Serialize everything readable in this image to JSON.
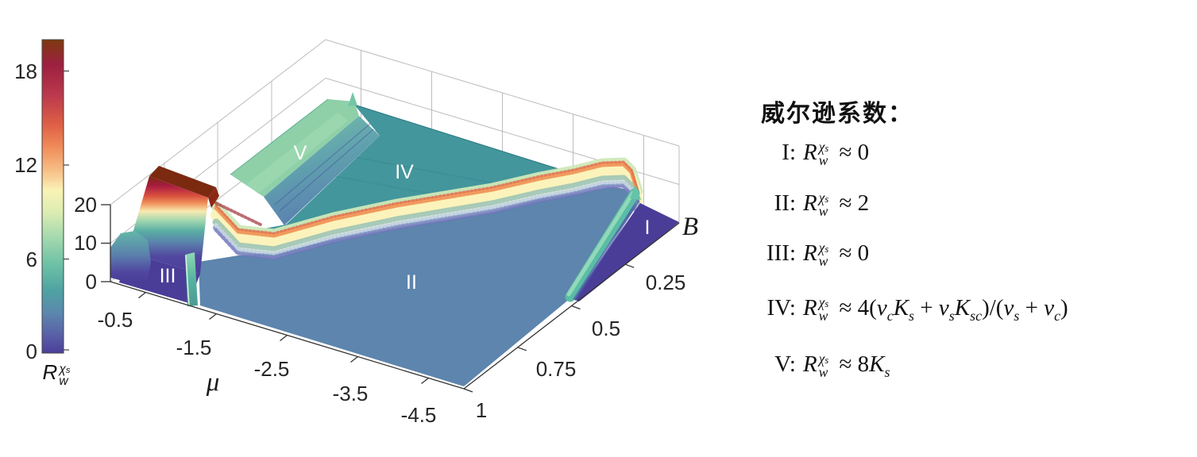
{
  "colorbar": {
    "ticks": [
      "0",
      "6",
      "12",
      "18"
    ],
    "range": [
      0,
      20
    ],
    "label_tokens": [
      {
        "R": true
      }
    ]
  },
  "axes": {
    "z": {
      "ticks": [
        "0",
        "10",
        "20"
      ]
    },
    "mu": {
      "label": "μ",
      "ticks": [
        "-0.5",
        "-1.5",
        "-2.5",
        "-3.5",
        "-4.5"
      ]
    },
    "b": {
      "label": "B",
      "ticks": [
        "0.25",
        "0.5",
        "0.75",
        "1"
      ]
    }
  },
  "plot": {
    "region_labels": {
      "I": "I",
      "II": "II",
      "III": "III",
      "IV": "IV",
      "V": "V"
    }
  },
  "legend": {
    "title": "威尔逊系数：",
    "R": {
      "base": "R",
      "sup": "χ",
      "sup_sub": "s",
      "sub": "w"
    },
    "lines": [
      {
        "num": "I:",
        "tokens": [
          {
            "R": true
          },
          {
            "t": " ≈ 0"
          }
        ]
      },
      {
        "num": "II:",
        "tokens": [
          {
            "R": true
          },
          {
            "t": " ≈ 2"
          }
        ]
      },
      {
        "num": "III:",
        "tokens": [
          {
            "R": true
          },
          {
            "t": " ≈ 0"
          }
        ]
      },
      {
        "num": "IV:",
        "tokens": [
          {
            "R": true
          },
          {
            "t": " ≈ 4("
          },
          {
            "i": "v",
            "s": "c"
          },
          {
            "i": "K",
            "s": "s"
          },
          {
            "t": " + "
          },
          {
            "i": "v",
            "s": "s"
          },
          {
            "i": "K",
            "s": "sc"
          },
          {
            "t": ")/("
          },
          {
            "i": "v",
            "s": "s"
          },
          {
            "t": " + "
          },
          {
            "i": "v",
            "s": "c"
          },
          {
            "t": ")"
          }
        ]
      },
      {
        "num": "V:",
        "tokens": [
          {
            "R": true
          },
          {
            "t": " ≈ 8"
          },
          {
            "i": "K",
            "s": "s"
          }
        ]
      }
    ]
  },
  "chart_data": {
    "type": "surface",
    "title": "",
    "xlabel": "μ",
    "ylabel": "B",
    "zlabel": "R_w^{χ_s}",
    "x_range": [
      -5,
      0
    ],
    "y_range": [
      0,
      1
    ],
    "z_range": [
      0,
      20
    ],
    "x_ticks": [
      -0.5,
      -1.5,
      -2.5,
      -3.5,
      -4.5
    ],
    "y_ticks": [
      0.25,
      0.5,
      0.75,
      1
    ],
    "z_ticks": [
      0,
      10,
      20
    ],
    "grid": true,
    "colorbar": {
      "ticks": [
        0,
        6,
        12,
        18
      ],
      "range": [
        0,
        20
      ]
    },
    "regions": [
      {
        "label": "I",
        "formula": "R_w^{χ_s} ≈ 0",
        "approx_height": 0,
        "location": {
          "mu": -4.7,
          "B": 0.06
        }
      },
      {
        "label": "II",
        "formula": "R_w^{χ_s} ≈ 2",
        "approx_height": 2,
        "location": {
          "mu": -3.1,
          "B": 0.63
        }
      },
      {
        "label": "III",
        "formula": "R_w^{χ_s} ≈ 0",
        "approx_height": 0,
        "location": {
          "mu": -0.5,
          "B": 0.88
        }
      },
      {
        "label": "IV",
        "formula": "R_w^{χ_s} ≈ 4(v_cK_s + v_sK_sc)/(v_s + v_c)",
        "approx_height": 9,
        "location": {
          "mu": -2.0,
          "B": 0.28
        }
      },
      {
        "label": "V",
        "formula": "R_w^{χ_s} ≈ 8K_s",
        "approx_height": 11,
        "location": {
          "mu": -0.8,
          "B": 0.37
        }
      }
    ],
    "features": [
      {
        "name": "peak-wall-III-V-boundary",
        "approx_height": 20
      },
      {
        "name": "rainbow-ridge-II-IV-boundary",
        "approx_height": 12
      },
      {
        "name": "green-ridge-I-II-boundary",
        "approx_height": 6
      }
    ]
  }
}
